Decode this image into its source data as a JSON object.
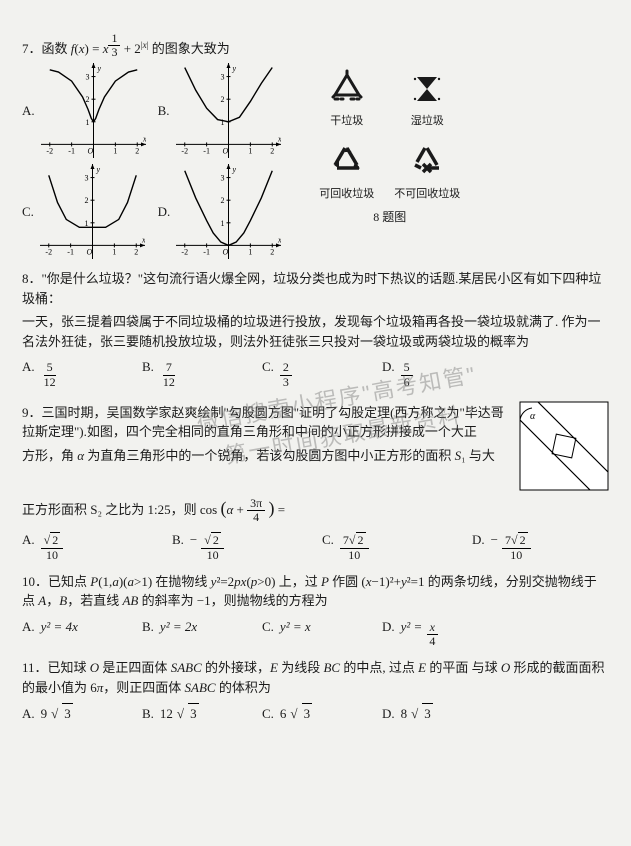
{
  "q7": {
    "stem": "7．函数 f(x)=x^{1/3}+2^{|x|} 的图象大致为",
    "labels": {
      "A": "A.",
      "B": "B.",
      "C": "C.",
      "D": "D."
    },
    "axes": {
      "xticks": [
        -2,
        -1,
        1,
        2
      ],
      "yticks": [
        1,
        2,
        3
      ],
      "xlabel": "x",
      "ylabel": "y",
      "xlim": [
        -2.4,
        2.4
      ],
      "ylim": [
        -0.6,
        3.6
      ],
      "tick_fontsize": 8,
      "axis_color": "#000000",
      "curve_color": "#000000",
      "curve_width": 1.4,
      "bg": "#f2f2ef"
    },
    "curves": {
      "A": [
        [
          -2,
          3.3
        ],
        [
          -1.6,
          3.2
        ],
        [
          -1.0,
          2.8
        ],
        [
          -0.5,
          2.1
        ],
        [
          -0.25,
          1.55
        ],
        [
          -0.1,
          1.15
        ],
        [
          0,
          1.0
        ],
        [
          0.1,
          1.15
        ],
        [
          0.25,
          1.55
        ],
        [
          0.5,
          2.1
        ],
        [
          1.0,
          2.8
        ],
        [
          1.6,
          3.2
        ],
        [
          2,
          3.3
        ]
      ],
      "B": [
        [
          -2,
          3.4
        ],
        [
          -1.5,
          2.4
        ],
        [
          -1.0,
          1.6
        ],
        [
          -0.5,
          1.1
        ],
        [
          0,
          1.0
        ],
        [
          0.5,
          1.2
        ],
        [
          1.0,
          1.9
        ],
        [
          1.5,
          2.7
        ],
        [
          2,
          3.4
        ]
      ],
      "C": [
        [
          -2,
          3.1
        ],
        [
          -1.6,
          1.9
        ],
        [
          -1.2,
          1.15
        ],
        [
          -0.6,
          0.8
        ],
        [
          0,
          0.8
        ],
        [
          0.6,
          0.8
        ],
        [
          1.2,
          1.15
        ],
        [
          1.6,
          1.9
        ],
        [
          2,
          3.1
        ]
      ],
      "D": [
        [
          -2,
          3.3
        ],
        [
          -1.5,
          2.1
        ],
        [
          -1.0,
          1.1
        ],
        [
          -0.7,
          0.55
        ],
        [
          -0.35,
          0.15
        ],
        [
          0,
          0.0
        ],
        [
          0.35,
          0.15
        ],
        [
          0.7,
          0.55
        ],
        [
          1.0,
          1.1
        ],
        [
          1.5,
          2.1
        ],
        [
          2,
          3.3
        ]
      ]
    },
    "bins": {
      "items": [
        {
          "label": "干垃圾",
          "icon": "dry"
        },
        {
          "label": "湿垃圾",
          "icon": "wet"
        },
        {
          "label": "可回收垃圾",
          "icon": "recycle"
        },
        {
          "label": "不可回收垃圾",
          "icon": "noRecycle"
        }
      ],
      "icon_color": "#1a1a1a",
      "caption": "8 题图"
    }
  },
  "q8": {
    "line1": "8．\"你是什么垃圾？\"这句流行语火爆全网，垃圾分类也成为时下热议的话题.某居民小区有如下四种垃圾桶：",
    "line2": "一天，张三提着四袋属于不同垃圾桶的垃圾进行投放，发现每个垃圾箱再各投一袋垃圾就满了. 作为一名法外狂徒，张三要随机投放垃圾，则法外狂徒张三只投对一袋垃圾或两袋垃圾的概率为",
    "opts": {
      "A": {
        "num": "5",
        "den": "12"
      },
      "B": {
        "num": "7",
        "den": "12"
      },
      "C": {
        "num": "2",
        "den": "3"
      },
      "D": {
        "num": "5",
        "den": "6"
      }
    }
  },
  "q9": {
    "line1": "9．三国时期，吴国数学家赵爽绘制\"勾股圆方图\"证明了勾股定理(西方称之为\"毕达哥拉斯定理\").如图，四个完全相同的直角三角形和中间的小正方形拼接成一个大正",
    "line2": "方形，角 α 为直角三角形中的一个锐角，若该勾股圆方图中小正方形的面积 S₁ 与大",
    "line3_pre": "正方形面积 S₂ 之比为 1:25，则 cos",
    "line3_arg_num": "3π",
    "line3_arg_den": "4",
    "line3_post": " =",
    "alpha": "α",
    "opts": {
      "A": {
        "sign": "",
        "top": "√2",
        "den": "10"
      },
      "B": {
        "sign": "−",
        "top": "√2",
        "den": "10"
      },
      "C": {
        "sign": "",
        "top": "7√2",
        "den": "10"
      },
      "D": {
        "sign": "−",
        "top": "7√2",
        "den": "10"
      }
    },
    "fig": {
      "outer": 90,
      "inner_offset": 54,
      "inner_size": 24,
      "stroke": "#000000",
      "fill": "#ffffff"
    }
  },
  "q10": {
    "line1": "10．已知点 P(1,a)(a>1) 在抛物线 y²=2px(p>0) 上，过 P 作圆 (x−1)²+y²=1 的两条切线，分别交抛物线于点 A，B，若直线 AB 的斜率为 −1，则抛物线的方程为",
    "opts": {
      "A": "y² = 4x",
      "B": "y² = 2x",
      "C": "y² = x",
      "D_pre": "y² = ",
      "D_num": "x",
      "D_den": "4"
    }
  },
  "q11": {
    "line1": "11．已知球 O 是正四面体 SABC 的外接球，E 为线段 BC 的中点, 过点 E 的平面 与球 O 形成的截面面积的最小值为 6π，则正四面体 SABC 的体积为",
    "opts": {
      "A": "9√3",
      "B": "12√3",
      "C": "6√3",
      "D": "8√3"
    }
  },
  "watermark": {
    "line1": "微信搜索小程序\"高考知管\"",
    "line2": "第一时间获取最新资料"
  },
  "style": {
    "fg": "#1a1a1a",
    "bg": "#f2f2ef",
    "font_body": 13,
    "font_small": 11
  }
}
